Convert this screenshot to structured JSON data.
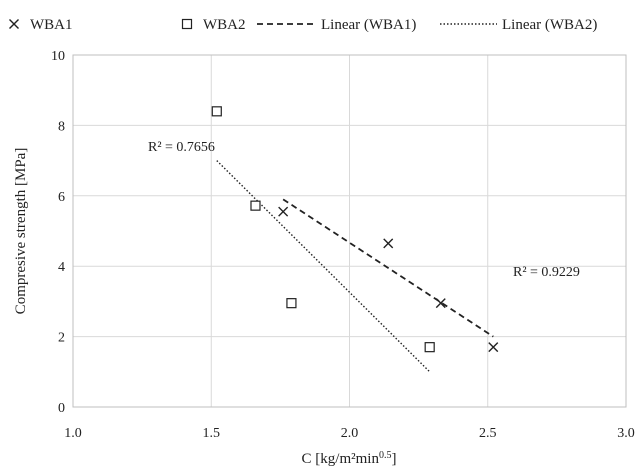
{
  "chart_data": {
    "type": "scatter",
    "title": "",
    "xlabel": "C [kg/m²min",
    "xlabel_sup": "0.5",
    "xlabel_end": "]",
    "ylabel": "Compresive strength [MPa]",
    "xlim": [
      1.0,
      3.0
    ],
    "ylim": [
      0,
      10
    ],
    "xticks": [
      "1.0",
      "1.5",
      "2.0",
      "2.5",
      "3.0"
    ],
    "yticks": [
      "0",
      "2",
      "4",
      "6",
      "8",
      "10"
    ],
    "grid": true,
    "legend_position": "top",
    "series": [
      {
        "name": "WBA1",
        "marker": "x",
        "color": "#222222",
        "points": [
          [
            1.76,
            5.55
          ],
          [
            2.14,
            4.65
          ],
          [
            2.33,
            2.95
          ],
          [
            2.52,
            1.7
          ]
        ]
      },
      {
        "name": "WBA2",
        "marker": "square",
        "color": "#222222",
        "points": [
          [
            1.52,
            8.4
          ],
          [
            1.66,
            5.72
          ],
          [
            1.79,
            2.95
          ],
          [
            2.29,
            1.7
          ]
        ]
      }
    ],
    "trendlines": [
      {
        "name": "Linear (WBA1)",
        "style": "dashed",
        "color": "#222222",
        "x": [
          1.76,
          2.52
        ],
        "y": [
          5.9,
          2.0
        ],
        "r2_label": "R² = 0.9229"
      },
      {
        "name": "Linear (WBA2)",
        "style": "dotted",
        "color": "#222222",
        "x": [
          1.52,
          2.29
        ],
        "y": [
          7.0,
          1.0
        ],
        "r2_label": "R² = 0.7656"
      }
    ]
  }
}
